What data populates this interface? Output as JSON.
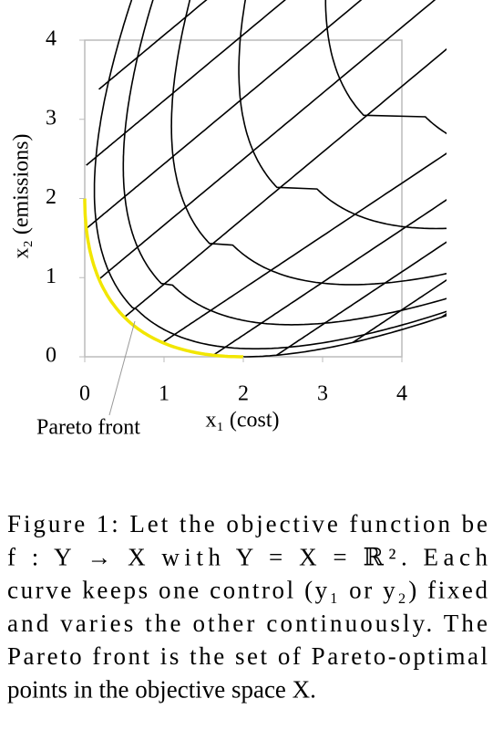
{
  "chart_data": {
    "type": "line",
    "xlabel": "x₁ (cost)",
    "ylabel": "x₂ (emissions)",
    "xlim": [
      0,
      4
    ],
    "ylim": [
      0,
      4
    ],
    "xticks": [
      0,
      1,
      2,
      3,
      4
    ],
    "yticks": [
      0,
      1,
      2,
      3,
      4
    ],
    "annotation": "Pareto front"
  },
  "caption": {
    "lines": [
      "Figure 1:  Let the objective function be",
      "f : Y → X with Y = X = ℝ². Each",
      "curve keeps one control (y₁ or y₂) fixed",
      "and varies the other continuously.  The",
      "Pareto front is the set of Pareto-optimal",
      "points in the objective space X."
    ]
  }
}
